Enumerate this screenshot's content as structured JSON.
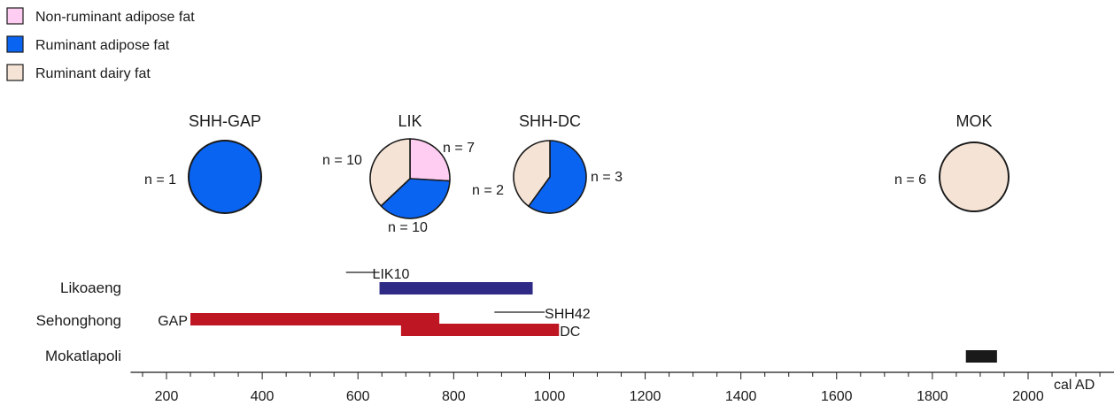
{
  "chart_data": {
    "type": "pie",
    "legend": {
      "placement": "top-left",
      "entries": [
        {
          "key": "non_ruminant",
          "label": "Non-ruminant adipose fat",
          "color": "#ffccf2"
        },
        {
          "key": "ruminant_adipose",
          "label": "Ruminant adipose fat",
          "color": "#0a64f2"
        },
        {
          "key": "ruminant_dairy",
          "label": "Ruminant dairy fat",
          "color": "#f5e4d6"
        }
      ]
    },
    "pies": [
      {
        "title": "SHH-GAP",
        "slices": [
          {
            "category": "ruminant_adipose",
            "value": 1,
            "label": "n = 1"
          }
        ]
      },
      {
        "title": "LIK",
        "slices": [
          {
            "category": "non_ruminant",
            "value": 7,
            "label": "n = 7"
          },
          {
            "category": "ruminant_adipose",
            "value": 10,
            "label": "n = 10"
          },
          {
            "category": "ruminant_dairy",
            "value": 10,
            "label": "n = 10"
          }
        ]
      },
      {
        "title": "SHH-DC",
        "slices": [
          {
            "category": "ruminant_adipose",
            "value": 3,
            "label": "n = 3"
          },
          {
            "category": "ruminant_dairy",
            "value": 2,
            "label": "n = 2"
          }
        ]
      },
      {
        "title": "MOK",
        "slices": [
          {
            "category": "ruminant_dairy",
            "value": 6,
            "label": "n = 6"
          }
        ]
      }
    ],
    "timeline": {
      "xlabel": "cal AD",
      "xlim": [
        125,
        2180
      ],
      "ticks": [
        200,
        400,
        600,
        800,
        1000,
        1200,
        1400,
        1600,
        1800,
        2000
      ],
      "minor_step": 50,
      "sites": [
        {
          "label": "Likoaeng",
          "ranges": [
            {
              "label": "LIK10",
              "type": "line",
              "start": 575,
              "end": 645
            },
            {
              "label": "",
              "type": "bar",
              "start": 645,
              "end": 965,
              "color": "#2e2a85"
            }
          ]
        },
        {
          "label": "Sehonghong",
          "ranges": [
            {
              "label": "GAP",
              "type": "bar",
              "start": 250,
              "end": 770,
              "color": "#be1622"
            },
            {
              "label": "SHH42",
              "type": "line",
              "start": 885,
              "end": 990
            },
            {
              "label": "DC",
              "type": "bar",
              "start": 690,
              "end": 1020,
              "color": "#be1622"
            }
          ]
        },
        {
          "label": "Mokatlapoli",
          "ranges": [
            {
              "label": "",
              "type": "bar",
              "start": 1870,
              "end": 1935,
              "color": "#1a1a1a"
            }
          ]
        }
      ]
    }
  }
}
